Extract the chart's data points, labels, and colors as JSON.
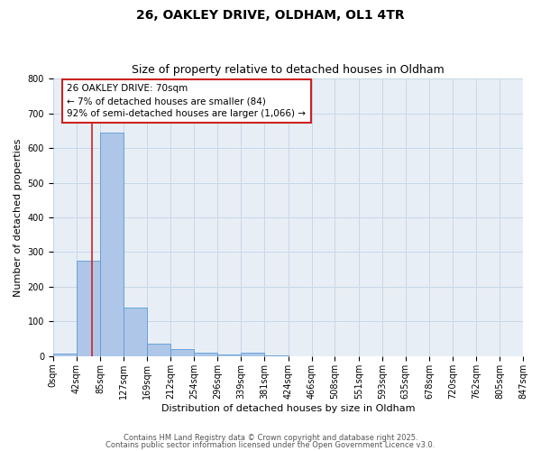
{
  "title_line1": "26, OAKLEY DRIVE, OLDHAM, OL1 4TR",
  "title_line2": "Size of property relative to detached houses in Oldham",
  "xlabel": "Distribution of detached houses by size in Oldham",
  "ylabel": "Number of detached properties",
  "bin_edges": [
    0,
    42,
    85,
    127,
    169,
    212,
    254,
    296,
    339,
    381,
    424,
    466,
    508,
    551,
    593,
    635,
    678,
    720,
    762,
    805,
    847
  ],
  "bar_values": [
    7,
    275,
    645,
    140,
    37,
    20,
    10,
    5,
    10,
    2,
    0,
    0,
    0,
    0,
    0,
    0,
    0,
    0,
    0,
    1
  ],
  "bar_color": "#aec6e8",
  "bar_edgecolor": "#5b9bd5",
  "grid_color": "#c8d8e8",
  "background_color": "#e8eef5",
  "vline_x": 70,
  "vline_color": "#cc2222",
  "annotation_title": "26 OAKLEY DRIVE: 70sqm",
  "annotation_line1": "← 7% of detached houses are smaller (84)",
  "annotation_line2": "92% of semi-detached houses are larger (1,066) →",
  "annotation_box_edgecolor": "#cc2222",
  "ylim": [
    0,
    800
  ],
  "yticks": [
    0,
    100,
    200,
    300,
    400,
    500,
    600,
    700,
    800
  ],
  "footer_line1": "Contains HM Land Registry data © Crown copyright and database right 2025.",
  "footer_line2": "Contains public sector information licensed under the Open Government Licence v3.0.",
  "title_fontsize": 10,
  "subtitle_fontsize": 9,
  "axis_label_fontsize": 8,
  "tick_fontsize": 7,
  "footer_fontsize": 6,
  "annotation_fontsize": 7.5
}
